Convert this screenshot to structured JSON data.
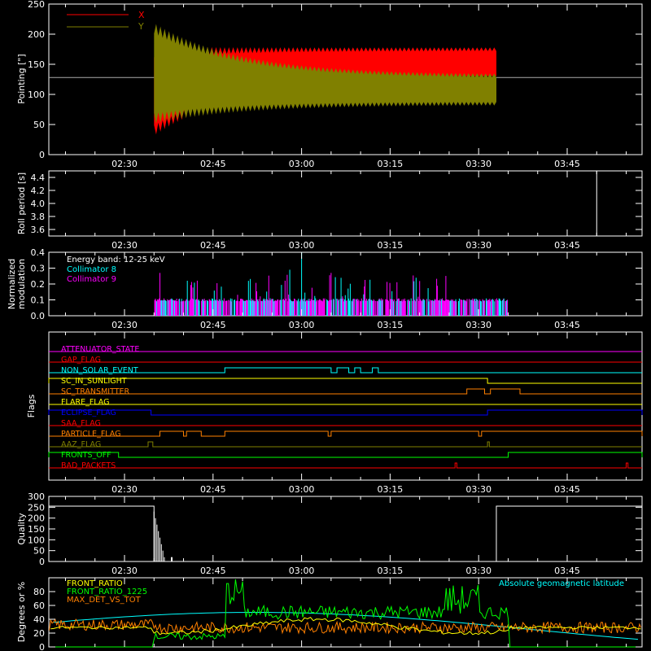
{
  "time_ticks": [
    "02:30",
    "02:45",
    "03:00",
    "03:15",
    "03:30",
    "03:45"
  ],
  "chart_data": [
    {
      "type": "line",
      "ylabel": "Pointing [\"]",
      "ylim": [
        0,
        250
      ],
      "yticks": [
        0,
        50,
        100,
        150,
        200,
        250
      ],
      "series": [
        {
          "name": "X",
          "color": "#ff0000",
          "start_min": 35,
          "end_min": 93,
          "start_range": [
            40,
            170
          ],
          "end_range": [
            130,
            175
          ]
        },
        {
          "name": "Y",
          "color": "#808000",
          "start_min": 35,
          "end_min": 93,
          "start_range": [
            60,
            210
          ],
          "end_range": [
            85,
            130
          ]
        }
      ],
      "reference_level": 128
    },
    {
      "type": "line",
      "ylabel": "Roll period [s]",
      "ylim": [
        3.5,
        4.5
      ],
      "yticks": [
        3.6,
        3.8,
        4.0,
        4.2,
        4.4
      ],
      "spike_min": 110
    },
    {
      "type": "bar",
      "ylabel": "Normalized modulation",
      "ylim": [
        0,
        0.4
      ],
      "yticks": [
        0.0,
        0.1,
        0.2,
        0.3,
        0.4
      ],
      "annotations": [
        "Energy band: 12-25 keV",
        "Collimator 8",
        "Collimator 9"
      ],
      "series": [
        {
          "name": "Collimator 8",
          "color": "#00ffff"
        },
        {
          "name": "Collimator 9",
          "color": "#ff00ff"
        }
      ],
      "start_min": 35,
      "end_min": 95
    },
    {
      "type": "line",
      "ylabel": "Flags",
      "flags": [
        {
          "name": "ATTENUATOR_STATE",
          "color": "#ff00ff",
          "on": []
        },
        {
          "name": "GAP_FLAG",
          "color": "#ff0000",
          "on": []
        },
        {
          "name": "NON_SOLAR_EVENT",
          "color": "#00ffff",
          "on": [
            [
              47,
              65
            ],
            [
              66,
              68
            ],
            [
              69,
              70
            ],
            [
              72,
              73
            ]
          ]
        },
        {
          "name": "SC_IN_SUNLIGHT",
          "color": "#ffff00",
          "on": [
            [
              -30,
              91.5
            ]
          ]
        },
        {
          "name": "SC_TRANSMITTER",
          "color": "#ff8000",
          "on": [
            [
              88,
              91
            ],
            [
              92,
              97
            ]
          ]
        },
        {
          "name": "FLARE_FLAG",
          "color": "#ffff00",
          "on": []
        },
        {
          "name": "ECLIPSE_FLAG",
          "color": "#0000ff",
          "on": [
            [
              -30,
              34.5
            ],
            [
              91.5,
              130
            ]
          ]
        },
        {
          "name": "SAA_FLAG",
          "color": "#ff0000",
          "on": []
        },
        {
          "name": "PARTICLE_FLAG",
          "color": "#ff8000",
          "on": [
            [
              36,
              40
            ],
            [
              40.5,
              43
            ],
            [
              47,
              64.5
            ],
            [
              65,
              90
            ],
            [
              90.5,
              130
            ]
          ]
        },
        {
          "name": "AAZ_FLAG",
          "color": "#808000",
          "on": [
            [
              34,
              34.8
            ],
            [
              91.5,
              91.8
            ]
          ]
        },
        {
          "name": "FRONTS_OFF",
          "color": "#00ff00",
          "on": [
            [
              -30,
              29
            ],
            [
              95,
              130
            ]
          ]
        },
        {
          "name": "BAD_PACKETS",
          "color": "#ff0000",
          "on": [
            [
              86,
              86.3
            ],
            [
              115,
              115.3
            ]
          ]
        }
      ]
    },
    {
      "type": "line",
      "ylabel": "Quality",
      "ylim": [
        0,
        300
      ],
      "yticks": [
        0,
        50,
        100,
        150,
        200,
        250,
        300
      ],
      "segments": [
        [
          -30,
          35,
          255
        ],
        [
          93,
          130,
          255
        ]
      ]
    },
    {
      "type": "line",
      "ylabel": "Degrees or %",
      "ylim": [
        0,
        100
      ],
      "yticks": [
        0,
        20,
        40,
        60,
        80
      ],
      "annotation": "Absolute geomagnetic latitude",
      "series": [
        {
          "name": "FRONT_RATIO",
          "color": "#ffff00"
        },
        {
          "name": "FRONT_RATIO_1225",
          "color": "#00ff00"
        },
        {
          "name": "MAX_DET_VS_TOT",
          "color": "#ff8000"
        },
        {
          "name": "Absolute geomagnetic latitude",
          "color": "#00ffff"
        }
      ]
    }
  ]
}
